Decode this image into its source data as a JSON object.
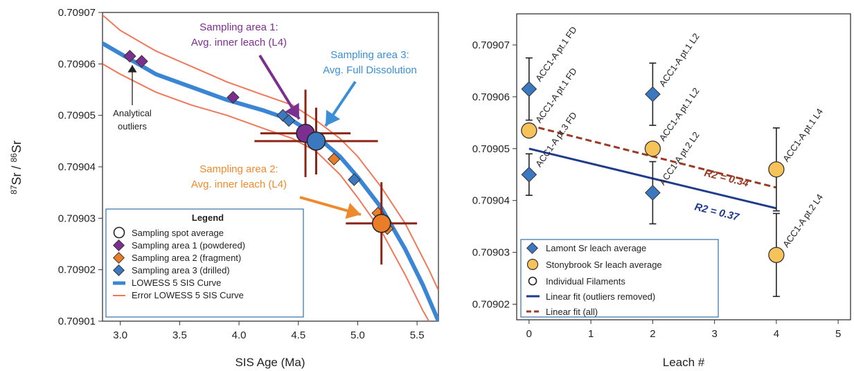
{
  "chart_data": [
    {
      "type": "scatter",
      "panel": "left",
      "xlabel": "SIS Age (Ma)",
      "ylabel_parts": [
        "87",
        "Sr / ",
        "86",
        "Sr"
      ],
      "xlim": [
        2.85,
        5.68
      ],
      "ylim": [
        0.70901,
        0.70907
      ],
      "xticks": [
        "3.0",
        "3.5",
        "4.0",
        "4.5",
        "5.0",
        "5.5"
      ],
      "xtick_values": [
        3.0,
        3.5,
        4.0,
        4.5,
        5.0,
        5.5
      ],
      "yticks": [
        "0.70901",
        "0.70902",
        "0.70903",
        "0.70904",
        "0.70905",
        "0.70906",
        "0.70907"
      ],
      "ytick_values": [
        0.70901,
        0.70902,
        0.70903,
        0.70904,
        0.70905,
        0.70906,
        0.70907
      ],
      "curves": {
        "lowess": {
          "color": "#3a86d4",
          "points": [
            [
              2.85,
              0.709064
            ],
            [
              3.0,
              0.709062
            ],
            [
              3.3,
              0.709058
            ],
            [
              3.6,
              0.7090555
            ],
            [
              3.9,
              0.709053
            ],
            [
              4.2,
              0.709051
            ],
            [
              4.45,
              0.709049
            ],
            [
              4.65,
              0.709046
            ],
            [
              4.85,
              0.709042
            ],
            [
              5.0,
              0.709038
            ],
            [
              5.2,
              0.709032
            ],
            [
              5.4,
              0.709024
            ],
            [
              5.55,
              0.709017
            ],
            [
              5.68,
              0.70901
            ]
          ]
        },
        "error_upper": {
          "color": "#f0785a",
          "points": [
            [
              2.85,
              0.7090695
            ],
            [
              3.0,
              0.7090665
            ],
            [
              3.3,
              0.7090625
            ],
            [
              3.6,
              0.7090595
            ],
            [
              3.9,
              0.7090565
            ],
            [
              4.2,
              0.709054
            ],
            [
              4.45,
              0.709052
            ],
            [
              4.65,
              0.709049
            ],
            [
              4.85,
              0.7090455
            ],
            [
              5.0,
              0.709042
            ],
            [
              5.2,
              0.709036
            ],
            [
              5.4,
              0.709029
            ],
            [
              5.6,
              0.70902
            ],
            [
              5.68,
              0.709016
            ]
          ]
        },
        "error_lower": {
          "color": "#f0785a",
          "points": [
            [
              2.85,
              0.70906
            ],
            [
              3.0,
              0.709058
            ],
            [
              3.3,
              0.7090545
            ],
            [
              3.6,
              0.709052
            ],
            [
              3.9,
              0.70905
            ],
            [
              4.2,
              0.7090475
            ],
            [
              4.45,
              0.7090455
            ],
            [
              4.65,
              0.709043
            ],
            [
              4.85,
              0.7090385
            ],
            [
              5.0,
              0.709034
            ],
            [
              5.2,
              0.7090275
            ],
            [
              5.4,
              0.709019
            ],
            [
              5.55,
              0.709012
            ],
            [
              5.6,
              0.70901
            ]
          ]
        }
      },
      "sampling_area_1": {
        "color": "#7b2f8f",
        "points": [
          [
            3.08,
            0.7090615
          ],
          [
            3.18,
            0.7090605
          ],
          [
            3.95,
            0.7090535
          ],
          [
            4.55,
            0.7090465
          ]
        ]
      },
      "sampling_area_2": {
        "color": "#ea7d28",
        "points": [
          [
            4.8,
            0.7090415
          ],
          [
            5.17,
            0.709031
          ],
          [
            5.25,
            0.709028
          ]
        ]
      },
      "sampling_area_3": {
        "color": "#3b78bf",
        "points": [
          [
            4.37,
            0.70905
          ],
          [
            4.42,
            0.709049
          ],
          [
            4.97,
            0.7090375
          ]
        ]
      },
      "spot_averages": [
        {
          "x": 4.56,
          "y": 0.7090465,
          "xerr": 0.38,
          "yerr": 8.5e-06,
          "color": "#7b2f8f"
        },
        {
          "x": 4.65,
          "y": 0.709045,
          "xerr": 0.52,
          "yerr": 6.5e-06,
          "color": "#3b78bf"
        },
        {
          "x": 5.2,
          "y": 0.709029,
          "xerr": 0.3,
          "yerr": 8e-06,
          "color": "#ea7d28"
        }
      ],
      "annotations": {
        "area1": {
          "lines": [
            "Sampling area 1:",
            "Avg. inner leach (L4)"
          ],
          "color": "#7b2f8f"
        },
        "area3": {
          "lines": [
            "Sampling area 3:",
            "Avg. Full Dissolution"
          ],
          "color": "#3b8fd6"
        },
        "area2": {
          "lines": [
            "Sampling area 2:",
            "Avg. inner leach (L4)"
          ],
          "color": "#ef8a2c"
        },
        "outliers": {
          "lines": [
            "Analytical",
            "outliers"
          ],
          "color": "#222222"
        }
      },
      "legend": {
        "title": "Legend",
        "items": [
          "Sampling spot average",
          "Sampling area 1 (powdered)",
          "Sampling area 2 (fragment)",
          "Sampling area 3 (drilled)",
          "LOWESS 5 SIS Curve",
          "Error LOWESS 5 SIS Curve"
        ]
      }
    },
    {
      "type": "scatter",
      "panel": "right",
      "xlabel": "Leach #",
      "xlim": [
        -0.2,
        5.2
      ],
      "ylim": [
        0.709017,
        0.709076
      ],
      "xticks": [
        "0",
        "1",
        "2",
        "3",
        "4",
        "5"
      ],
      "xtick_values": [
        0,
        1,
        2,
        3,
        4,
        5
      ],
      "yticks": [
        "0.70902",
        "0.70903",
        "0.70904",
        "0.70905",
        "0.70906",
        "0.70907"
      ],
      "ytick_values": [
        0.70902,
        0.70903,
        0.70904,
        0.70905,
        0.70906,
        0.70907
      ],
      "lamont": {
        "color": "#3b78bf",
        "points": [
          {
            "x": 0,
            "y": 0.7090615,
            "err": 6e-06,
            "label": "ACC1-A pt.1 FD"
          },
          {
            "x": 0,
            "y": 0.709045,
            "err": 4e-06,
            "label": "ACC1-A pt.3 FD"
          },
          {
            "x": 2,
            "y": 0.7090605,
            "err": 6e-06,
            "label": "ACC1-A pt.1 L2"
          },
          {
            "x": 2,
            "y": 0.7090415,
            "err": 6e-06,
            "label": "ACC1-A pt.2 L2"
          }
        ]
      },
      "stonybrook": {
        "color": "#f6c25a",
        "points": [
          {
            "x": 0,
            "y": 0.7090535,
            "err": 0,
            "label": "ACC1-A pt.1 FD"
          },
          {
            "x": 2,
            "y": 0.70905,
            "err": 0,
            "label": "ACC1-A pt.1 L2"
          },
          {
            "x": 4,
            "y": 0.709046,
            "err": 8e-06,
            "label": "ACC1-A pt.1 L4"
          },
          {
            "x": 4,
            "y": 0.7090295,
            "err": 8e-06,
            "label": "ACC1-A pt.2 L4"
          }
        ]
      },
      "fit_outliers_removed": {
        "color": "#1f3b8c",
        "from": [
          0,
          0.70905
        ],
        "to": [
          4,
          0.7090385
        ],
        "label": "R2 = 0.37"
      },
      "fit_all": {
        "color": "#9b3a25",
        "from": [
          0,
          0.7090545
        ],
        "to": [
          4,
          0.7090425
        ],
        "label": "R2 = 0.34"
      },
      "legend": {
        "items": [
          "Lamont Sr leach average",
          "Stonybrook Sr leach average",
          "Individual Filaments",
          "Linear fit (outliers removed)",
          "Linear fit (all)"
        ]
      }
    }
  ]
}
